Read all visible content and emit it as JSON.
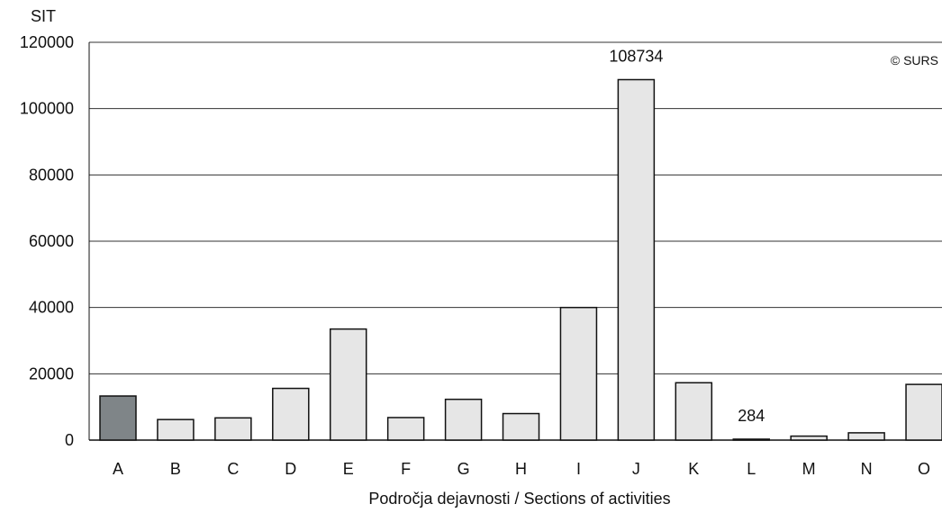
{
  "chart_data": {
    "type": "bar",
    "unit_label": "SIT",
    "watermark": "© SURS",
    "xlabel": "Področja dejavnosti / Sections of activities",
    "categories": [
      "A",
      "B",
      "C",
      "D",
      "E",
      "F",
      "G",
      "H",
      "I",
      "J",
      "K",
      "L",
      "M",
      "N",
      "O"
    ],
    "values": [
      13300,
      6200,
      6700,
      15600,
      33500,
      6800,
      12300,
      8000,
      40000,
      108734,
      17300,
      284,
      1200,
      2200,
      16800
    ],
    "data_labels": {
      "J": "108734",
      "L": "284"
    },
    "highlighted_categories": [
      "A"
    ],
    "ylim": [
      0,
      120000
    ],
    "yticks": [
      0,
      20000,
      40000,
      60000,
      80000,
      100000,
      120000
    ],
    "grid": true,
    "colors": {
      "bar": "#e6e6e6",
      "highlight": "#7f8588",
      "stroke": "#111111",
      "grid": "#333333"
    }
  }
}
